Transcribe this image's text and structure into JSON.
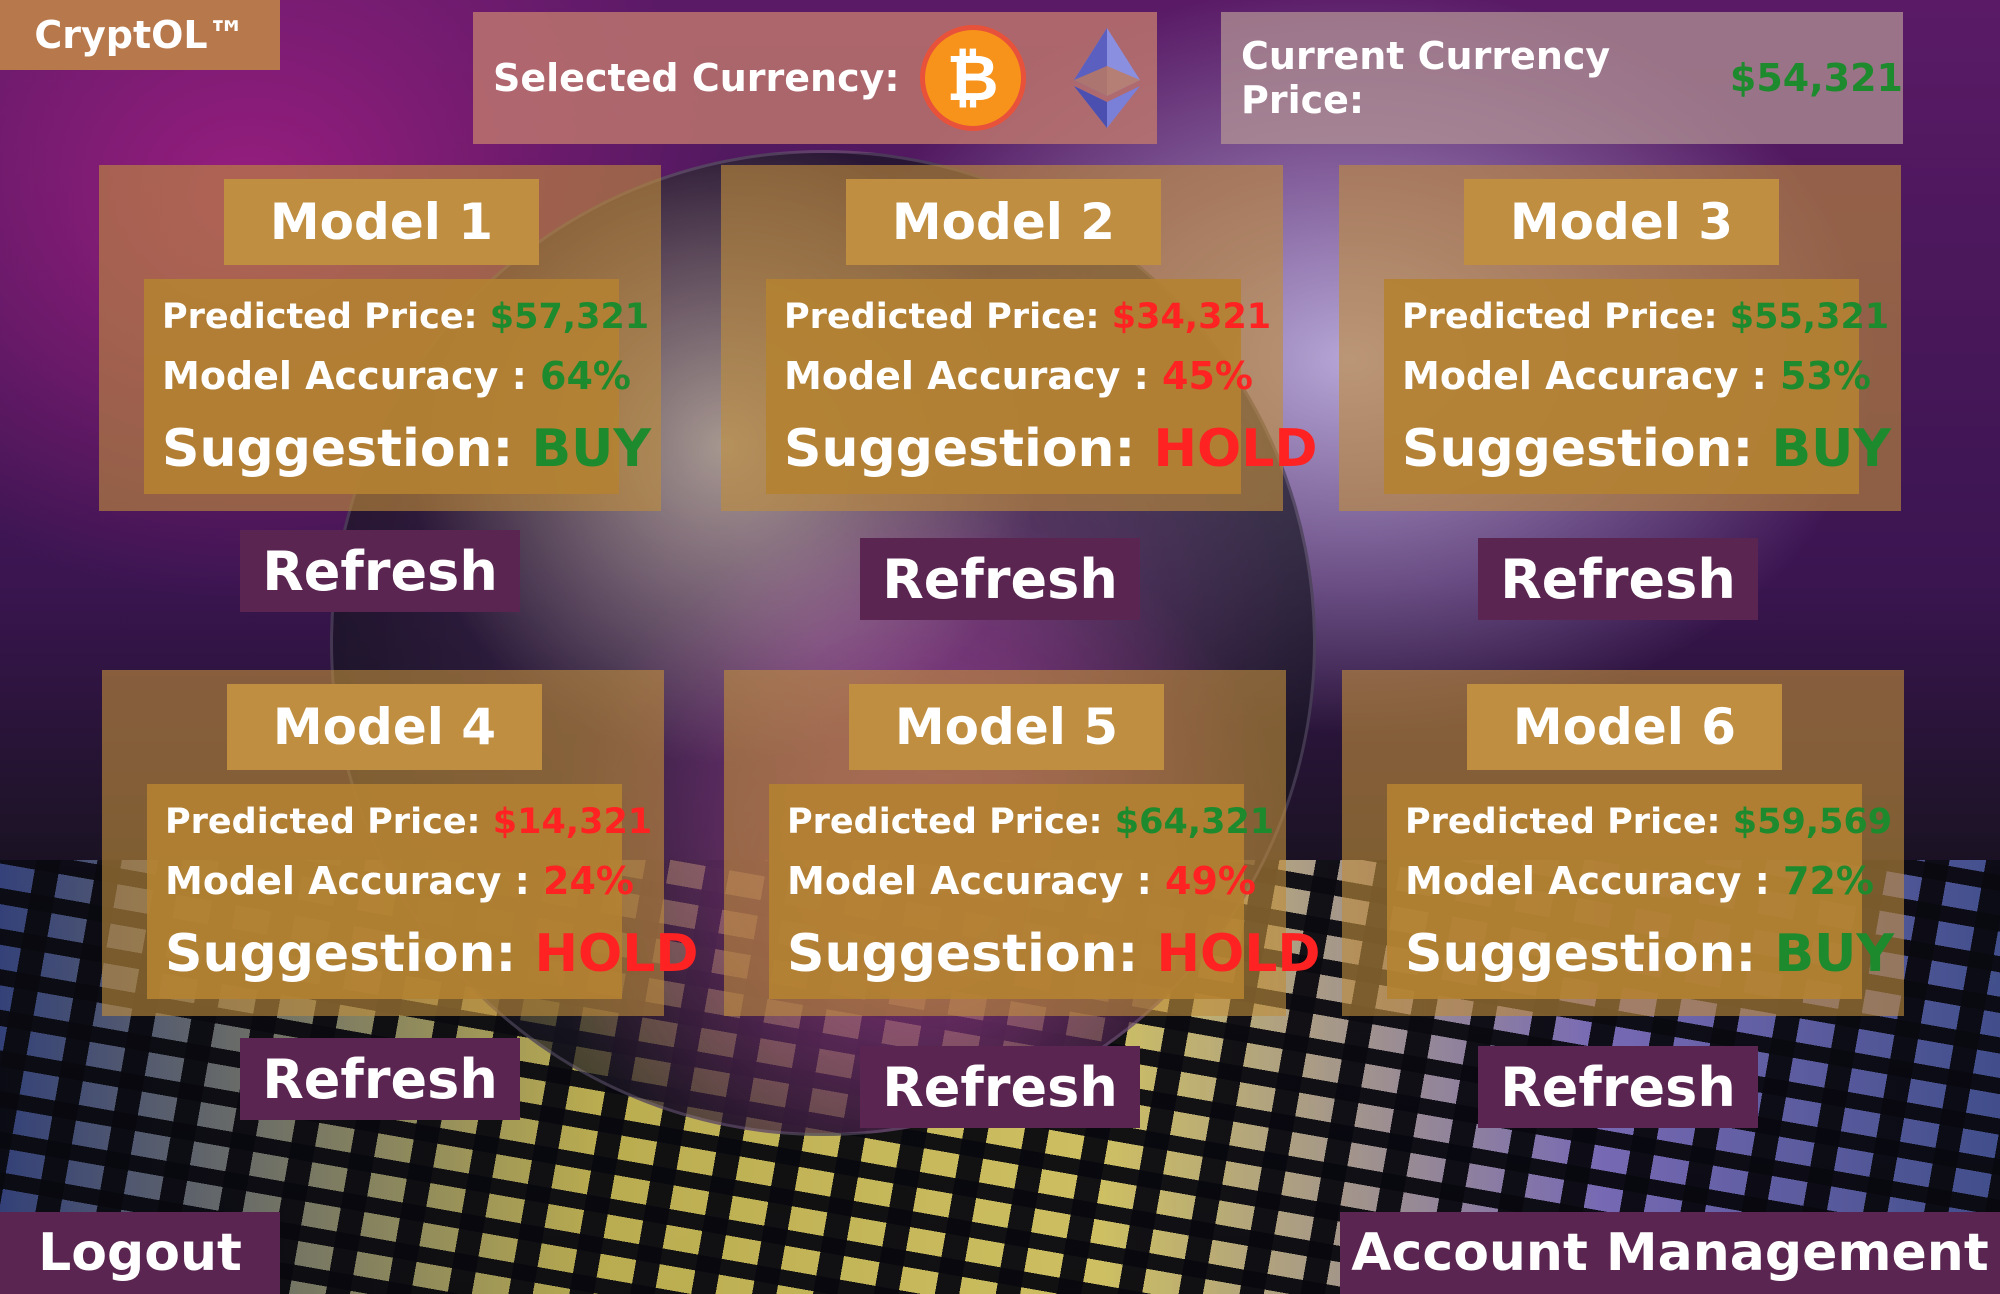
{
  "app": {
    "brand": "CryptOL™"
  },
  "header": {
    "selected_currency_label": "Selected Currency:",
    "btc_symbol": "₿",
    "current_price_label": "Current Currency  Price:",
    "current_price_value": "$54,321"
  },
  "labels": {
    "predicted_price": "Predicted Price:",
    "model_accuracy": "Model Accuracy :",
    "suggestion": "Suggestion:",
    "refresh": "Refresh"
  },
  "models": [
    {
      "title": "Model 1",
      "price": "$57,321",
      "accuracy": "64%",
      "suggestion": "BUY",
      "price_color": "green",
      "acc_color": "green",
      "sug_color": "green"
    },
    {
      "title": "Model 2",
      "price": "$34,321",
      "accuracy": "45%",
      "suggestion": "HOLD",
      "price_color": "red",
      "acc_color": "red",
      "sug_color": "red"
    },
    {
      "title": "Model 3",
      "price": "$55,321",
      "accuracy": "53%",
      "suggestion": "BUY",
      "price_color": "green",
      "acc_color": "green",
      "sug_color": "green"
    },
    {
      "title": "Model 4",
      "price": "$14,321",
      "accuracy": "24%",
      "suggestion": "HOLD",
      "price_color": "red",
      "acc_color": "red",
      "sug_color": "red"
    },
    {
      "title": "Model 5",
      "price": "$64,321",
      "accuracy": "49%",
      "suggestion": "HOLD",
      "price_color": "green",
      "acc_color": "red",
      "sug_color": "red"
    },
    {
      "title": "Model 6",
      "price": "$59,569",
      "accuracy": "72%",
      "suggestion": "BUY",
      "price_color": "green",
      "acc_color": "green",
      "sug_color": "green"
    }
  ],
  "footer": {
    "logout": "Logout",
    "account_management": "Account Management"
  },
  "colors": {
    "green": "#1e8a2e",
    "red": "#ff2222",
    "button": "#5a2550",
    "card_title": "#c08e40"
  }
}
